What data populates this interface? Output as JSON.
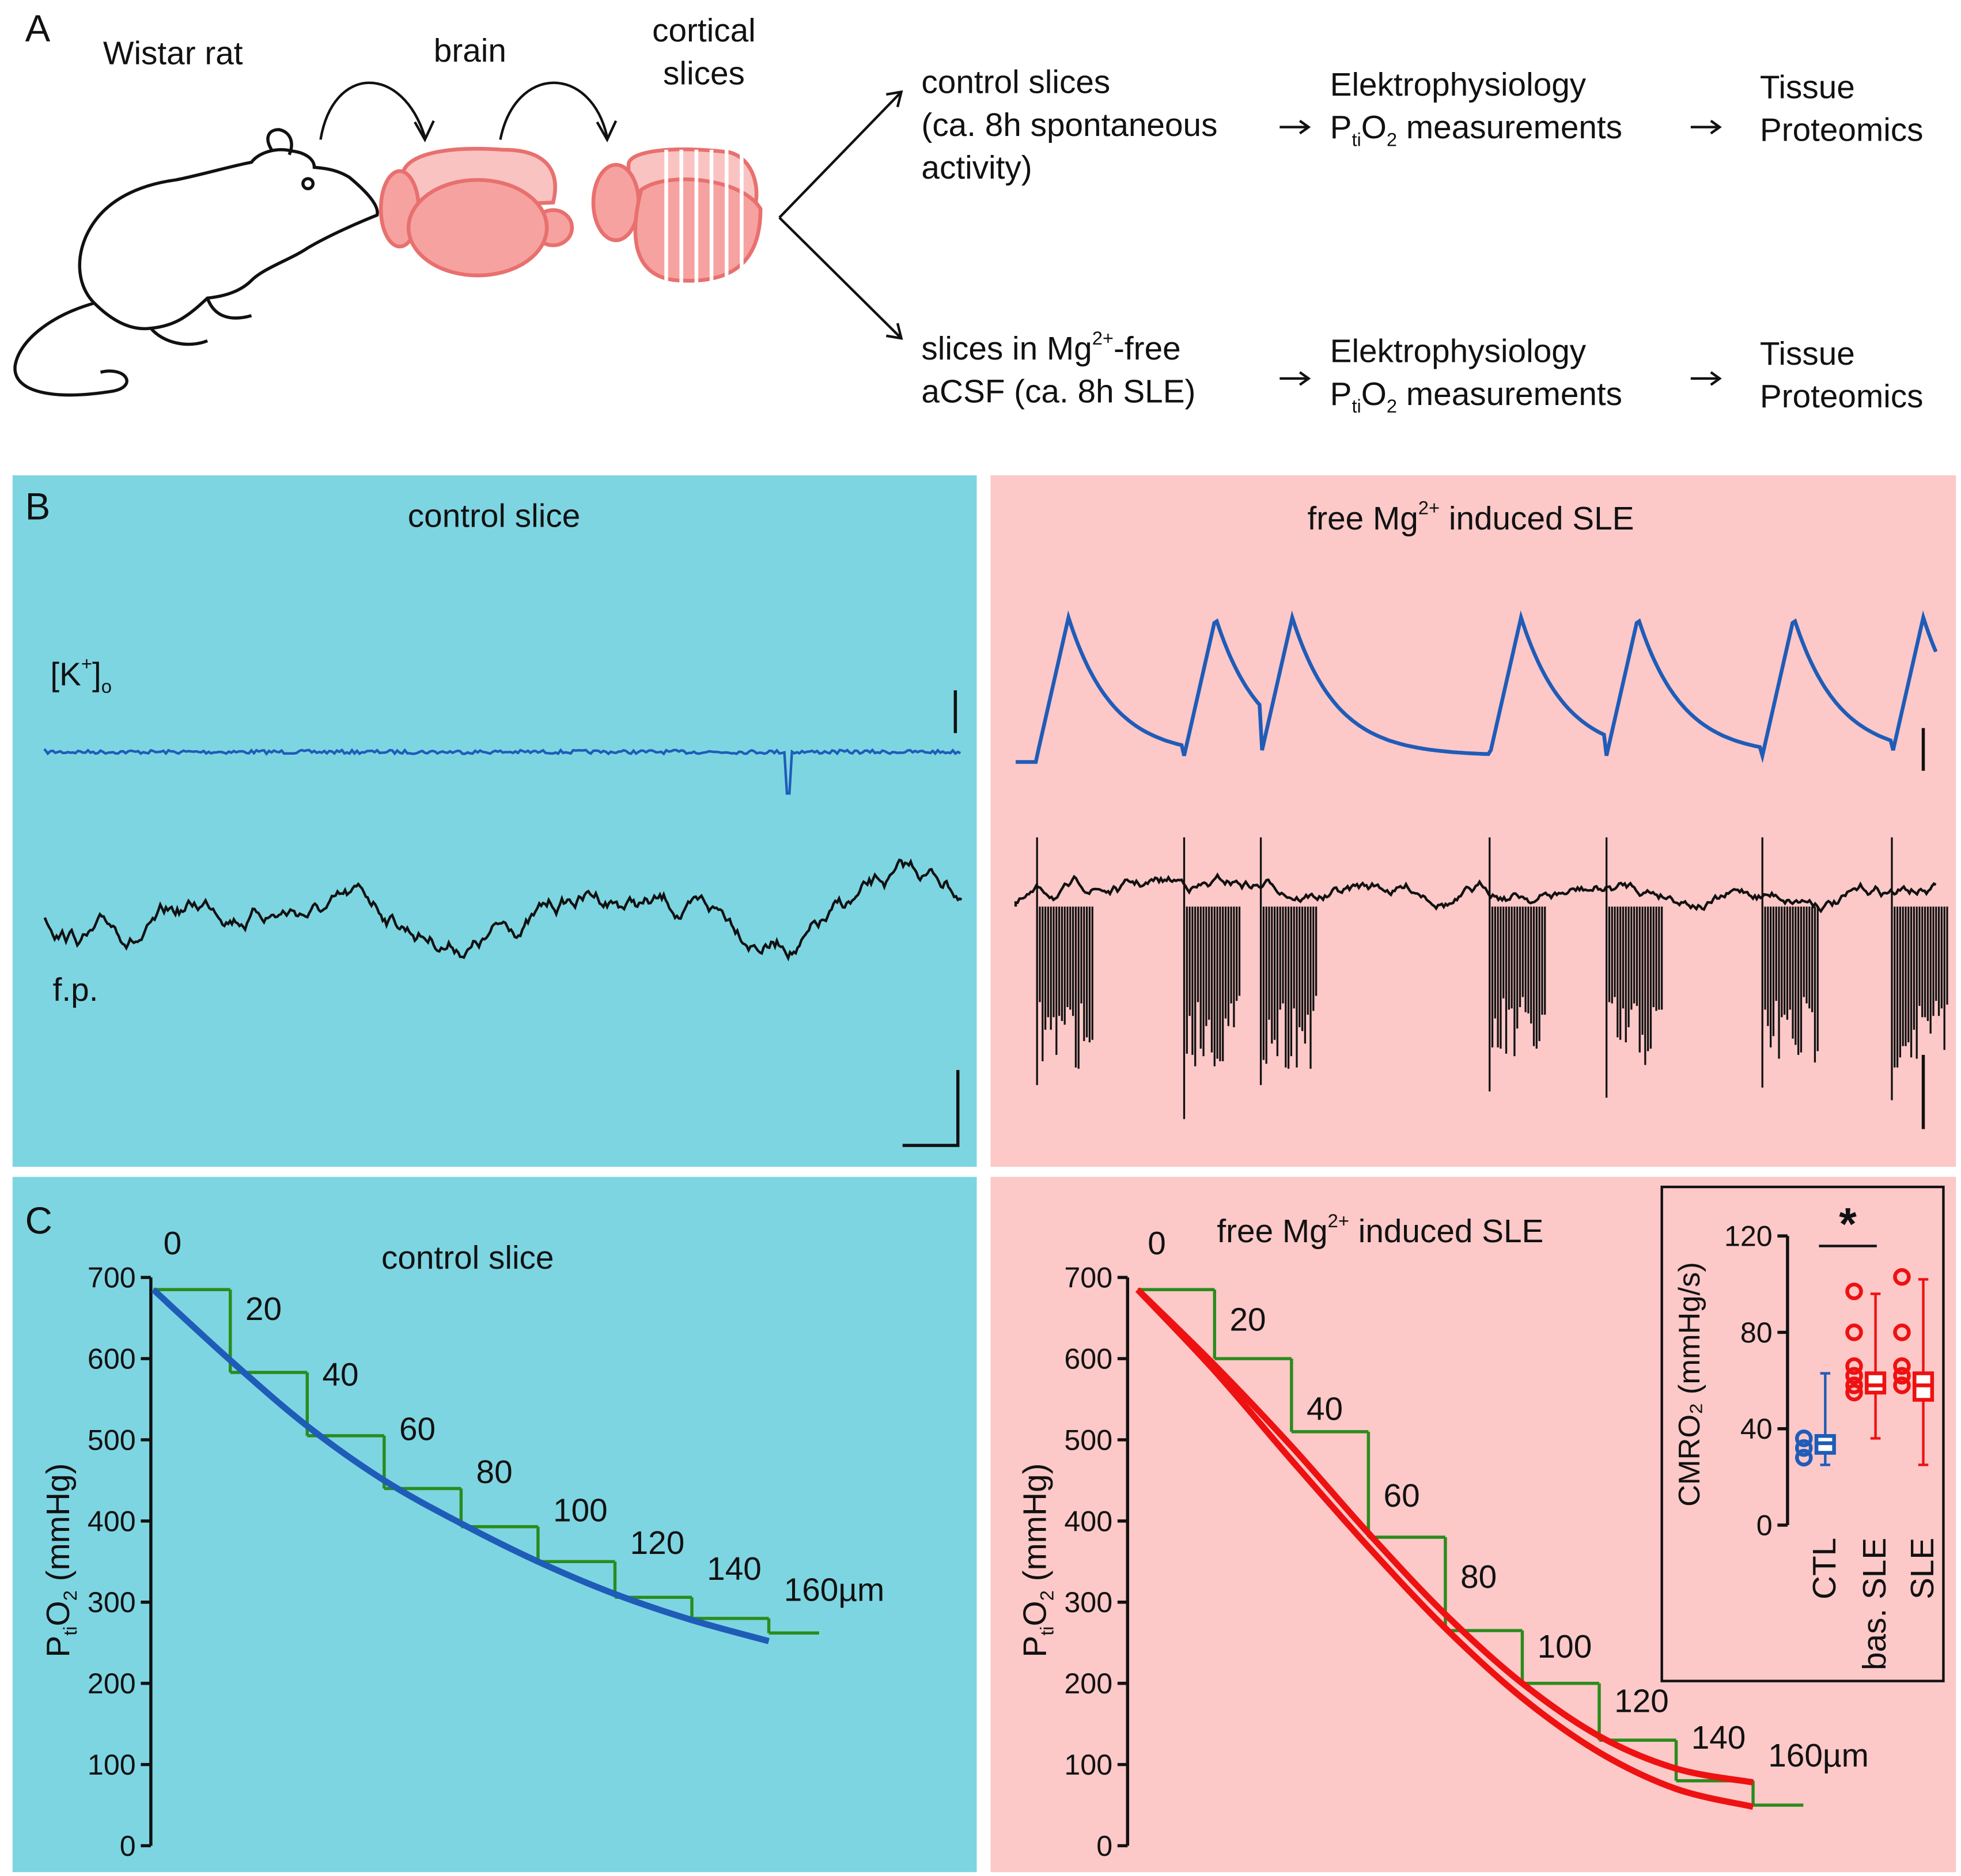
{
  "panel_a": {
    "letter": "A",
    "rat": "Wistar rat",
    "brain": "brain",
    "slices": [
      "cortical",
      "slices"
    ],
    "top": {
      "lines": [
        "control slices",
        "(ca. 8h spontaneous",
        "activity)"
      ],
      "measure": [
        "Elektrophysiology",
        "P",
        "ti",
        "O",
        "2",
        " measurements"
      ],
      "result": [
        "Tissue",
        "Proteomics"
      ]
    },
    "bottom": {
      "lines": [
        "slices in Mg",
        "2+",
        "-free",
        " aCSF (ca. 8h SLE)"
      ],
      "measure": [
        "Elektrophysiology",
        "P",
        "ti",
        "O",
        "2",
        " measurements"
      ],
      "result": [
        "Tissue",
        "Proteomics"
      ]
    }
  },
  "panel_b": {
    "letter": "B",
    "left_title": "control slice",
    "right_title": [
      "free Mg",
      "2+",
      " induced SLE"
    ],
    "k_label": [
      "[K",
      "+",
      "]",
      "o"
    ],
    "fp_label": "f.p."
  },
  "panel_c": {
    "letter": "C"
  },
  "chart_data": [
    {
      "type": "line",
      "title": "control slice",
      "x": [
        0,
        20,
        40,
        60,
        80,
        100,
        120,
        140,
        160
      ],
      "annotations": [
        "0",
        "20",
        "40",
        "60",
        "80",
        "100",
        "120",
        "140",
        "160µm"
      ],
      "y_label": [
        "P",
        "ti",
        "O",
        "2",
        " (mmHg)"
      ],
      "ylim": [
        0,
        700
      ],
      "yticks": [
        0,
        100,
        200,
        300,
        400,
        500,
        600,
        700
      ],
      "series": [
        {
          "color": "#2a8c1c",
          "style": "steps",
          "values": [
            685,
            583,
            505,
            440,
            393,
            350,
            306,
            280,
            262
          ]
        },
        {
          "color": "#1f5cb8",
          "style": "fit",
          "values": [
            685,
            598,
            517,
            450,
            397,
            350,
            310,
            278,
            252
          ]
        }
      ]
    },
    {
      "type": "line",
      "title": [
        "free Mg",
        "2+",
        " induced SLE"
      ],
      "x": [
        0,
        20,
        40,
        60,
        80,
        100,
        120,
        140,
        160
      ],
      "annotations": [
        "0",
        "20",
        "40",
        "60",
        "80",
        "100",
        "120",
        "140",
        "160µm"
      ],
      "y_label": [
        "P",
        "ti",
        "O",
        "2",
        " (mmHg)"
      ],
      "ylim": [
        0,
        700
      ],
      "yticks": [
        0,
        100,
        200,
        300,
        400,
        500,
        600,
        700
      ],
      "series": [
        {
          "color": "#2a8c1c",
          "style": "steps",
          "values": [
            685,
            600,
            510,
            380,
            265,
            200,
            130,
            80,
            50
          ]
        },
        {
          "color": "#ee1111",
          "style": "fit",
          "values": [
            685,
            592,
            492,
            385,
            285,
            200,
            135,
            95,
            78
          ]
        },
        {
          "color": "#ee1111",
          "style": "fit",
          "values": [
            685,
            585,
            475,
            368,
            268,
            182,
            115,
            70,
            48
          ]
        }
      ]
    },
    {
      "type": "box",
      "y_label": "CMRO₂ (mmHg/s)",
      "categories": [
        "CTL",
        "bas. SLE",
        "SLE"
      ],
      "ylim": [
        0,
        120
      ],
      "yticks": [
        0,
        40,
        80,
        120
      ],
      "annotation": "*",
      "colors": [
        "#1f5cb8",
        "#ee1111",
        "#ee1111"
      ],
      "boxes": [
        {
          "min": 25,
          "q1": 30,
          "median": 34,
          "q3": 37,
          "max": 63,
          "points": [
            28,
            32,
            36
          ]
        },
        {
          "min": 36,
          "q1": 55,
          "median": 58,
          "q3": 63,
          "max": 96,
          "points": [
            55,
            58,
            62,
            66,
            80,
            97
          ]
        },
        {
          "min": 25,
          "q1": 52,
          "median": 58,
          "q3": 63,
          "max": 102,
          "points": [
            58,
            62,
            66,
            80,
            103
          ]
        }
      ]
    }
  ]
}
